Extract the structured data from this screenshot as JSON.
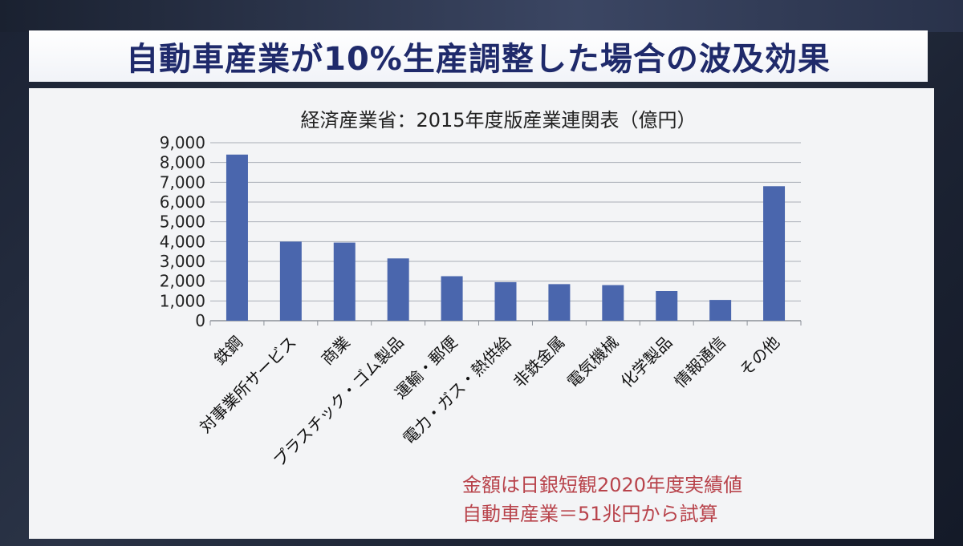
{
  "slide_title": "自動車産業が10%生産調整した場合の波及効果",
  "notes": [
    "金額は日銀短観2020年度実績値",
    "自動車産業＝51兆円から試算"
  ],
  "colors": {
    "bar": "#4a66ad",
    "title": "#1f2a6b",
    "note": "#b8434b"
  },
  "chart_data": {
    "type": "bar",
    "title": "経済産業省：2015年度版産業連関表（億円）",
    "categories": [
      "鉄鋼",
      "対事業所サービス",
      "商業",
      "プラスチック・ゴム製品",
      "運輸・郵便",
      "電力・ガス・熱供給",
      "非鉄金属",
      "電気機械",
      "化学製品",
      "情報通信",
      "その他"
    ],
    "values": [
      8400,
      4000,
      3950,
      3150,
      2250,
      1950,
      1850,
      1800,
      1500,
      1050,
      6800
    ],
    "ylim": [
      0,
      9000
    ],
    "yticks": [
      0,
      1000,
      2000,
      3000,
      4000,
      5000,
      6000,
      7000,
      8000,
      9000
    ],
    "ytick_labels": [
      "0",
      "1,000",
      "2,000",
      "3,000",
      "4,000",
      "5,000",
      "6,000",
      "7,000",
      "8,000",
      "9,000"
    ],
    "xlabel": "",
    "ylabel": "",
    "grid": true
  }
}
